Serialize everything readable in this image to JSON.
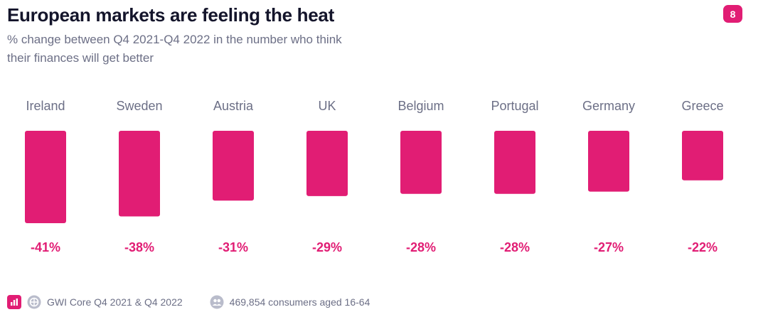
{
  "header": {
    "title": "European markets are feeling the heat",
    "subtitle": "% change between Q4 2021-Q4 2022 in the number who think their finances will get better",
    "page_number": "8"
  },
  "chart_data": {
    "type": "bar",
    "title": "European markets are feeling the heat",
    "subtitle": "% change between Q4 2021-Q4 2022 in the number who think their finances will get better",
    "categories": [
      "Ireland",
      "Sweden",
      "Austria",
      "UK",
      "Belgium",
      "Portugal",
      "Germany",
      "Greece"
    ],
    "values": [
      -41,
      -38,
      -31,
      -29,
      -28,
      -28,
      -27,
      -22
    ],
    "value_labels": [
      "-41%",
      "-38%",
      "-31%",
      "-29%",
      "-28%",
      "-28%",
      "-27%",
      "-22%"
    ],
    "bar_color": "#e11d74",
    "label_color": "#e11d74",
    "category_label_color": "#6c6f86",
    "xlabel": "",
    "ylabel": "",
    "legend": "none"
  },
  "footer": {
    "source": "GWI Core Q4 2021 & Q4 2022",
    "sample": "469,854 consumers aged 16-64"
  },
  "colors": {
    "accent": "#e11d74",
    "title": "#14152b",
    "muted": "#6c6f86"
  },
  "icons": {
    "chart": "bar-chart-icon",
    "source": "globe-icon",
    "sample": "people-icon"
  }
}
